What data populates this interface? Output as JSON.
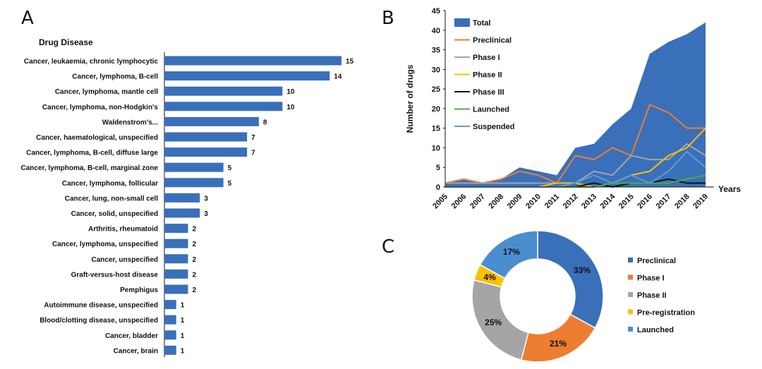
{
  "colors": {
    "bar": "#3a6fba",
    "total": "#3a6fba",
    "preclinical": "#ed7d31",
    "phase1": "#a5a5a5",
    "phase2": "#ffc000",
    "phase3": "#111111",
    "launched": "#4caf3a",
    "suspended": "#5b9bd5",
    "donut_preclinical": "#3a6fba",
    "donut_phase1": "#ed7d31",
    "donut_phase2": "#a5a5a5",
    "donut_prereg": "#ffc000",
    "donut_launched": "#4b8ed0"
  },
  "panels": {
    "a": "A",
    "b": "B",
    "c": "C"
  },
  "chart_data": [
    {
      "type": "bar",
      "orientation": "horizontal",
      "title": "Drug Disease",
      "categories": [
        "Cancer, leukaemia, chronic lymphocytic",
        "Cancer, lymphoma, B-cell",
        "Cancer, lymphoma, mantle cell",
        "Cancer, lymphoma, non-Hodgkin's",
        "Waldenstrom's...",
        "Cancer, haematological, unspecified",
        "Cancer, lymphoma, B-cell, diffuse large",
        "Cancer, lymphoma, B-cell, marginal zone",
        "Cancer, lymphoma, follicular",
        "Cancer, lung, non-small cell",
        "Cancer, solid, unspecified",
        "Arthritis, rheumatoid",
        "Cancer, lymphoma, unspecified",
        "Cancer, unspecified",
        "Graft-versus-host disease",
        "Pemphigus",
        "Autoimmune disease, unspecified",
        "Blood/clotting disease, unspecified",
        "Cancer, bladder",
        "Cancer, brain"
      ],
      "values": [
        15,
        14,
        10,
        10,
        8,
        7,
        7,
        5,
        5,
        3,
        3,
        2,
        2,
        2,
        2,
        2,
        1,
        1,
        1,
        1
      ],
      "xlim": [
        0,
        15
      ]
    },
    {
      "type": "area",
      "ylabel": "Number of drugs",
      "xlabel": "Years",
      "ylim": [
        0,
        45
      ],
      "yticks": [
        0,
        5,
        10,
        15,
        20,
        25,
        30,
        35,
        40,
        45
      ],
      "x": [
        "2005",
        "2006",
        "2007",
        "2008",
        "2009",
        "2010",
        "2011",
        "2012",
        "2013",
        "2014",
        "2015",
        "2016",
        "2017",
        "2018",
        "2019"
      ],
      "series": [
        {
          "name": "Total",
          "key": "total",
          "kind": "area",
          "values": [
            1,
            2,
            1,
            2,
            5,
            4,
            3,
            10,
            11,
            16,
            20,
            34,
            37,
            39,
            42
          ]
        },
        {
          "name": "Preclinical",
          "key": "preclinical",
          "kind": "line",
          "values": [
            1,
            2,
            1,
            2,
            4,
            3,
            1,
            8,
            7,
            10,
            8,
            21,
            19,
            15,
            15
          ]
        },
        {
          "name": "Phase I",
          "key": "phase1",
          "kind": "line",
          "values": [
            1,
            1,
            1,
            1,
            1,
            1,
            1,
            1,
            4,
            3,
            8,
            7,
            7,
            11,
            8
          ]
        },
        {
          "name": "Phase II",
          "key": "phase2",
          "kind": "line",
          "values": [
            0,
            0,
            0,
            0,
            0,
            0,
            1,
            1,
            0,
            1,
            3,
            4,
            8,
            10,
            15
          ]
        },
        {
          "name": "Phase III",
          "key": "phase3",
          "kind": "line",
          "values": [
            0,
            0,
            0,
            0,
            0,
            0,
            0,
            0,
            1,
            0,
            1,
            1,
            2,
            1,
            1
          ]
        },
        {
          "name": "Launched",
          "key": "launched",
          "kind": "line",
          "values": [
            0,
            0,
            0,
            0,
            0,
            0,
            0,
            0,
            0,
            1,
            1,
            1,
            1,
            2,
            3
          ]
        },
        {
          "name": "Suspended",
          "key": "suspended",
          "kind": "line",
          "values": [
            0,
            0,
            0,
            0,
            0,
            0,
            0,
            1,
            3,
            1,
            3,
            1,
            4,
            9,
            5
          ]
        }
      ]
    },
    {
      "type": "pie",
      "subtype": "donut",
      "slices": [
        {
          "name": "Preclinical",
          "key": "donut_preclinical",
          "value": 33,
          "label": "33%"
        },
        {
          "name": "Phase I",
          "key": "donut_phase1",
          "value": 21,
          "label": "21%"
        },
        {
          "name": "Phase II",
          "key": "donut_phase2",
          "value": 25,
          "label": "25%"
        },
        {
          "name": "Pre-registration",
          "key": "donut_prereg",
          "value": 4,
          "label": "4%"
        },
        {
          "name": "Launched",
          "key": "donut_launched",
          "value": 17,
          "label": "17%"
        }
      ]
    }
  ]
}
